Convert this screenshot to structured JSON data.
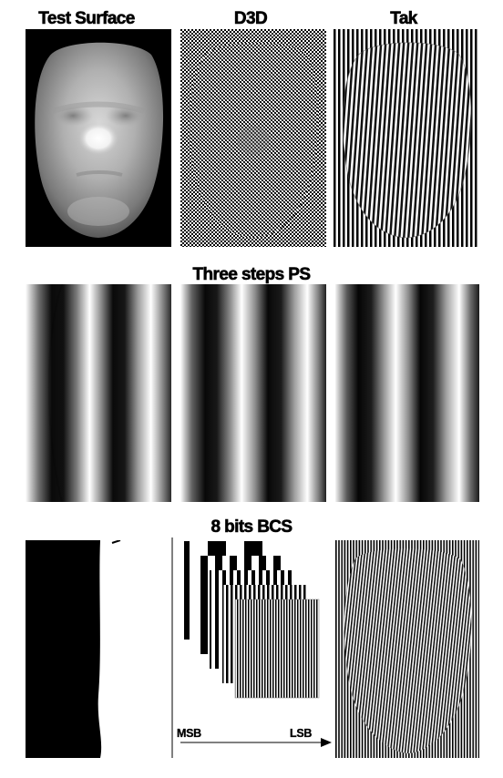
{
  "row1": {
    "titles": {
      "test_surface": "Test Surface",
      "d3d": "D3D",
      "tak": "Tak"
    }
  },
  "row2": {
    "title": "Three steps PS"
  },
  "row3": {
    "title": "8 bits BCS",
    "axis": {
      "left_label": "MSB",
      "right_label": "LSB"
    }
  }
}
